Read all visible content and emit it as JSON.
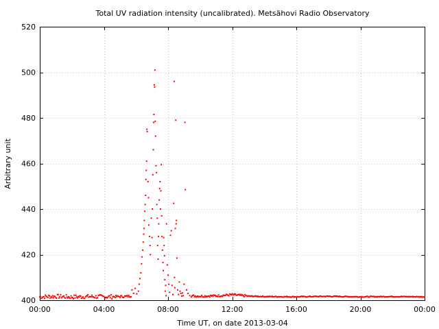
{
  "chart_data": {
    "type": "scatter",
    "title": "Total UV radiation intensity (uncalibrated). Metsähovi Radio Observatory",
    "xlabel": "Time UT, on date 2013-03-04",
    "ylabel": "Arbitrary unit",
    "xlim": [
      0,
      24
    ],
    "ylim": [
      400,
      520
    ],
    "xticks": [
      0,
      4,
      8,
      12,
      16,
      20,
      24
    ],
    "xtick_labels": [
      "00:00",
      "04:00",
      "08:00",
      "12:00",
      "16:00",
      "20:00",
      "00:00"
    ],
    "yticks": [
      400,
      420,
      440,
      460,
      480,
      500,
      520
    ],
    "ytick_labels": [
      "400",
      "420",
      "440",
      "460",
      "480",
      "500",
      "520"
    ],
    "grid": true,
    "series_color": "#ff0000",
    "baseline": [
      [
        0.0,
        401.5
      ],
      [
        1.0,
        401.7
      ],
      [
        2.0,
        401.4
      ],
      [
        3.0,
        401.6
      ],
      [
        4.0,
        401.5
      ],
      [
        5.0,
        401.6
      ],
      [
        5.5,
        401.7
      ],
      [
        6.0,
        402.2
      ],
      [
        10.0,
        401.8
      ],
      [
        11.0,
        401.9
      ],
      [
        12.0,
        402.4
      ],
      [
        13.0,
        401.8
      ],
      [
        14.0,
        401.6
      ],
      [
        16.0,
        401.5
      ],
      [
        18.0,
        401.7
      ],
      [
        20.0,
        401.5
      ],
      [
        22.0,
        401.6
      ],
      [
        24.0,
        401.5
      ]
    ],
    "peaks": [
      [
        5.75,
        404.5
      ],
      [
        5.85,
        403.0
      ],
      [
        5.95,
        405.2
      ],
      [
        6.05,
        402.8
      ],
      [
        6.15,
        404.0
      ],
      [
        6.2,
        407.0
      ],
      [
        6.25,
        409.5
      ],
      [
        6.3,
        412.0
      ],
      [
        6.35,
        416.0
      ],
      [
        6.38,
        419.0
      ],
      [
        6.42,
        422.0
      ],
      [
        6.45,
        425.5
      ],
      [
        6.48,
        429.0
      ],
      [
        6.5,
        431.5
      ],
      [
        6.52,
        435.0
      ],
      [
        6.55,
        439.0
      ],
      [
        6.57,
        442.0
      ],
      [
        6.6,
        446.0
      ],
      [
        6.62,
        453.0
      ],
      [
        6.64,
        457.0
      ],
      [
        6.66,
        461.0
      ],
      [
        6.68,
        475.0
      ],
      [
        6.7,
        474.0
      ],
      [
        6.75,
        452.0
      ],
      [
        6.78,
        445.0
      ],
      [
        6.8,
        433.0
      ],
      [
        6.85,
        428.0
      ],
      [
        6.88,
        424.0
      ],
      [
        6.9,
        420.0
      ],
      [
        6.95,
        436.0
      ],
      [
        7.0,
        427.5
      ],
      [
        7.02,
        440.0
      ],
      [
        7.05,
        455.0
      ],
      [
        7.08,
        466.0
      ],
      [
        7.1,
        478.0
      ],
      [
        7.12,
        481.5
      ],
      [
        7.14,
        494.5
      ],
      [
        7.16,
        493.5
      ],
      [
        7.18,
        501.0
      ],
      [
        7.2,
        478.5
      ],
      [
        7.22,
        472.0
      ],
      [
        7.25,
        459.0
      ],
      [
        7.28,
        456.0
      ],
      [
        7.3,
        442.0
      ],
      [
        7.33,
        436.0
      ],
      [
        7.35,
        424.0
      ],
      [
        7.38,
        418.0
      ],
      [
        7.4,
        428.0
      ],
      [
        7.42,
        433.5
      ],
      [
        7.45,
        444.0
      ],
      [
        7.48,
        449.0
      ],
      [
        7.5,
        452.0
      ],
      [
        7.52,
        440.0
      ],
      [
        7.55,
        448.0
      ],
      [
        7.58,
        459.5
      ],
      [
        7.6,
        437.0
      ],
      [
        7.62,
        428.0
      ],
      [
        7.65,
        422.0
      ],
      [
        7.68,
        416.5
      ],
      [
        7.7,
        413.0
      ],
      [
        7.72,
        427.5
      ],
      [
        7.75,
        424.0
      ],
      [
        7.78,
        419.5
      ],
      [
        7.8,
        409.0
      ],
      [
        7.82,
        404.0
      ],
      [
        7.85,
        406.5
      ],
      [
        7.88,
        402.0
      ],
      [
        7.9,
        433.5
      ],
      [
        7.95,
        415.5
      ],
      [
        8.0,
        411.0
      ],
      [
        8.05,
        407.0
      ],
      [
        8.1,
        403.5
      ],
      [
        8.15,
        428.5
      ],
      [
        8.2,
        430.5
      ],
      [
        8.25,
        406.5
      ],
      [
        8.3,
        402.5
      ],
      [
        8.35,
        442.5
      ],
      [
        8.38,
        496.0
      ],
      [
        8.4,
        410.0
      ],
      [
        8.42,
        405.5
      ],
      [
        8.45,
        431.5
      ],
      [
        8.48,
        479.0
      ],
      [
        8.5,
        433.5
      ],
      [
        8.52,
        435.0
      ],
      [
        8.55,
        418.5
      ],
      [
        8.6,
        404.5
      ],
      [
        8.65,
        402.5
      ],
      [
        8.7,
        408.0
      ],
      [
        8.75,
        404.0
      ],
      [
        8.8,
        403.0
      ],
      [
        8.85,
        401.8
      ],
      [
        8.9,
        403.2
      ],
      [
        8.95,
        402.0
      ],
      [
        9.0,
        407.0
      ],
      [
        9.05,
        478.0
      ],
      [
        9.08,
        448.5
      ],
      [
        9.15,
        404.5
      ],
      [
        9.25,
        403.0
      ],
      [
        9.35,
        402.0
      ]
    ]
  }
}
